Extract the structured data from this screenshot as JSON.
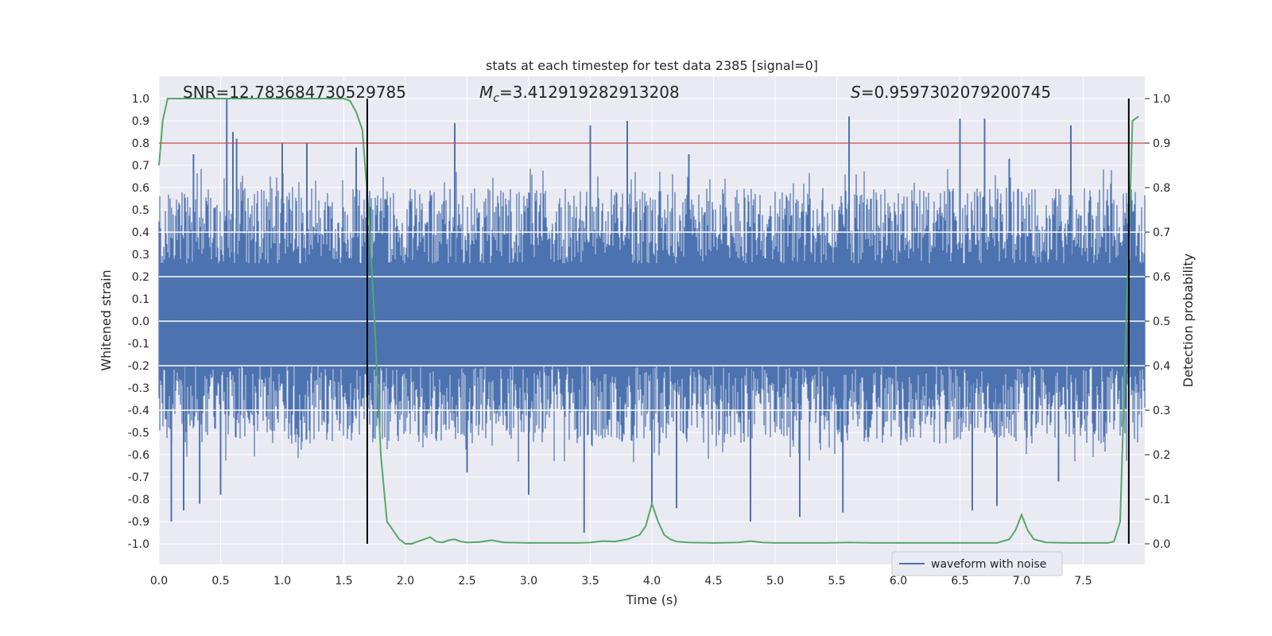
{
  "chart_data": {
    "type": "line",
    "title": "stats at each timestep for test data 2385 [signal=0]",
    "xlabel": "Time (s)",
    "ylabel": "Whitened strain",
    "y2label": "Detection probability",
    "xlim": [
      0.0,
      8.0
    ],
    "ylim": [
      -1.05,
      1.05
    ],
    "y2lim": [
      -0.05,
      1.05
    ],
    "xticks": [
      "0.0",
      "0.5",
      "1.0",
      "1.5",
      "2.0",
      "2.5",
      "3.0",
      "3.5",
      "4.0",
      "4.5",
      "5.0",
      "5.5",
      "6.0",
      "6.5",
      "7.0",
      "7.5"
    ],
    "yticks": [
      "1.0",
      "0.9",
      "0.8",
      "0.7",
      "0.6",
      "0.5",
      "0.4",
      "0.3",
      "0.2",
      "0.1",
      "0.0",
      "-0.1",
      "-0.2",
      "-0.3",
      "-0.4",
      "-0.5",
      "-0.6",
      "-0.7",
      "-0.8",
      "-0.9",
      "-1.0"
    ],
    "y2ticks": [
      "1.0",
      "0.9",
      "0.8",
      "0.7",
      "0.6",
      "0.5",
      "0.4",
      "0.3",
      "0.2",
      "0.1",
      "0.0"
    ],
    "annotations": {
      "snr": "SNR=12.783684730529785",
      "mc_symbol": "M",
      "mc_sub": "c",
      "mc_value": "=3.412919282913208",
      "s_symbol": "S",
      "s_value": "=0.9597302079200745"
    },
    "threshold": {
      "value": 0.9,
      "axis": "y2",
      "color": "#c44e52"
    },
    "vertical_lines": [
      1.69,
      7.87
    ],
    "legend": {
      "label": "waveform with noise",
      "location": "lower right"
    },
    "waveform": {
      "name": "waveform with noise",
      "color": "#4c72b0",
      "envelope_high": 0.6,
      "envelope_low": -0.55,
      "spikes_up": [
        [
          0.55,
          1.0
        ],
        [
          0.6,
          0.85
        ],
        [
          0.63,
          0.82
        ],
        [
          1.0,
          0.8
        ],
        [
          1.2,
          0.8
        ],
        [
          2.4,
          0.89
        ],
        [
          3.5,
          0.88
        ],
        [
          3.8,
          0.9
        ],
        [
          5.6,
          0.92
        ],
        [
          6.5,
          0.91
        ],
        [
          6.7,
          0.91
        ],
        [
          7.4,
          0.88
        ],
        [
          0.28,
          0.75
        ],
        [
          1.6,
          0.78
        ],
        [
          4.3,
          0.75
        ],
        [
          6.9,
          0.73
        ]
      ],
      "spikes_down": [
        [
          0.1,
          -0.9
        ],
        [
          0.2,
          -0.85
        ],
        [
          0.33,
          -0.82
        ],
        [
          0.5,
          -0.78
        ],
        [
          1.69,
          -0.75
        ],
        [
          2.5,
          -0.68
        ],
        [
          3.0,
          -0.78
        ],
        [
          3.45,
          -0.95
        ],
        [
          4.0,
          -0.82
        ],
        [
          4.2,
          -0.84
        ],
        [
          4.8,
          -0.9
        ],
        [
          5.2,
          -0.88
        ],
        [
          5.55,
          -0.86
        ],
        [
          6.6,
          -0.85
        ],
        [
          6.8,
          -0.83
        ],
        [
          7.3,
          -0.72
        ]
      ]
    },
    "series": [
      {
        "name": "Detection probability",
        "axis": "y2",
        "color": "#55a868",
        "x": [
          0.0,
          0.03,
          0.07,
          0.15,
          0.3,
          0.5,
          0.8,
          1.0,
          1.2,
          1.4,
          1.5,
          1.55,
          1.6,
          1.65,
          1.7,
          1.75,
          1.8,
          1.85,
          1.9,
          1.95,
          2.0,
          2.05,
          2.1,
          2.15,
          2.2,
          2.25,
          2.3,
          2.35,
          2.4,
          2.45,
          2.5,
          2.6,
          2.7,
          2.8,
          3.0,
          3.2,
          3.4,
          3.5,
          3.6,
          3.7,
          3.8,
          3.9,
          3.95,
          4.0,
          4.05,
          4.1,
          4.15,
          4.2,
          4.3,
          4.5,
          4.7,
          4.8,
          4.9,
          5.0,
          5.2,
          5.4,
          5.6,
          5.8,
          6.0,
          6.2,
          6.4,
          6.6,
          6.8,
          6.9,
          6.95,
          7.0,
          7.05,
          7.1,
          7.2,
          7.4,
          7.6,
          7.7,
          7.75,
          7.8,
          7.85,
          7.9,
          7.95
        ],
        "values": [
          0.85,
          0.95,
          1.0,
          1.0,
          1.0,
          1.0,
          1.0,
          1.0,
          1.0,
          1.0,
          1.0,
          0.995,
          0.97,
          0.93,
          0.75,
          0.5,
          0.2,
          0.05,
          0.03,
          0.01,
          0.0,
          0.0,
          0.005,
          0.01,
          0.015,
          0.005,
          0.003,
          0.008,
          0.01,
          0.005,
          0.003,
          0.004,
          0.008,
          0.003,
          0.002,
          0.002,
          0.002,
          0.003,
          0.006,
          0.005,
          0.01,
          0.02,
          0.04,
          0.09,
          0.05,
          0.02,
          0.01,
          0.005,
          0.003,
          0.002,
          0.003,
          0.006,
          0.003,
          0.002,
          0.002,
          0.002,
          0.003,
          0.002,
          0.002,
          0.002,
          0.002,
          0.002,
          0.002,
          0.01,
          0.03,
          0.065,
          0.03,
          0.01,
          0.003,
          0.002,
          0.002,
          0.002,
          0.005,
          0.05,
          0.5,
          0.95,
          0.96
        ]
      }
    ]
  }
}
